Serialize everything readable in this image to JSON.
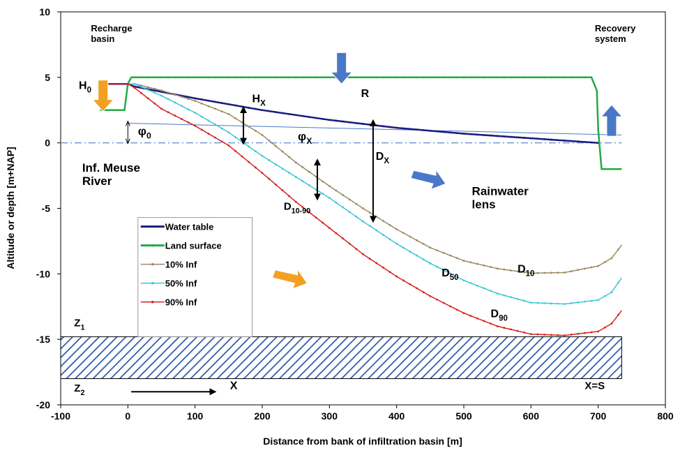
{
  "chart_data": {
    "type": "line",
    "xlabel": "Distance from bank of infiltration basin  [m]",
    "ylabel": "Altitude or depth  [m+NAP]",
    "xlim": [
      -100,
      800
    ],
    "ylim": [
      -20,
      10
    ],
    "x_ticks": [
      "-100",
      "0",
      "100",
      "200",
      "300",
      "400",
      "500",
      "600",
      "700",
      "800"
    ],
    "y_ticks": [
      "10",
      "5",
      "0",
      "-5",
      "-10",
      "-15",
      "-20"
    ],
    "grid": false,
    "legend_position": "left-middle",
    "series": [
      {
        "name": "Water table",
        "color": "#1a1a7e",
        "x": [
          -40,
          0,
          10,
          50,
          100,
          200,
          300,
          400,
          500,
          600,
          700
        ],
        "y": [
          4.5,
          4.5,
          4.3,
          3.9,
          3.4,
          2.5,
          1.75,
          1.15,
          0.7,
          0.35,
          0.0
        ]
      },
      {
        "name": "Land surface",
        "color": "#22aa44",
        "x": [
          -40,
          -5,
          0,
          5,
          150,
          300,
          500,
          690,
          698,
          700,
          705,
          735
        ],
        "y": [
          2.5,
          2.5,
          4.5,
          5.0,
          5.0,
          5.0,
          5.0,
          5.0,
          4.0,
          1.0,
          -2.0,
          -2.0
        ]
      },
      {
        "name": "10% Inf",
        "color": "#9a8c60",
        "x": [
          -40,
          0,
          10,
          50,
          100,
          150,
          200,
          250,
          300,
          350,
          400,
          450,
          500,
          550,
          600,
          650,
          700,
          720,
          735
        ],
        "y": [
          4.5,
          4.5,
          4.5,
          4.0,
          3.2,
          2.2,
          0.6,
          -1.5,
          -3.3,
          -5.0,
          -6.6,
          -8.0,
          -9.0,
          -9.6,
          -9.95,
          -9.9,
          -9.4,
          -8.8,
          -7.8
        ]
      },
      {
        "name": "50% Inf",
        "color": "#3cc8d4",
        "x": [
          -40,
          0,
          10,
          50,
          100,
          150,
          200,
          250,
          300,
          350,
          400,
          450,
          500,
          550,
          600,
          650,
          700,
          720,
          735
        ],
        "y": [
          4.5,
          4.5,
          4.5,
          3.6,
          2.3,
          0.8,
          -1.0,
          -2.6,
          -4.2,
          -6.0,
          -7.7,
          -9.2,
          -10.5,
          -11.5,
          -12.2,
          -12.3,
          -12.0,
          -11.4,
          -10.3
        ]
      },
      {
        "name": "90% Inf",
        "color": "#d62020",
        "x": [
          -40,
          0,
          10,
          50,
          100,
          150,
          200,
          250,
          300,
          350,
          400,
          450,
          500,
          550,
          600,
          650,
          700,
          720,
          735
        ],
        "y": [
          4.5,
          4.5,
          4.2,
          2.6,
          1.3,
          -0.2,
          -2.3,
          -4.5,
          -6.5,
          -8.5,
          -10.2,
          -11.7,
          -13.0,
          -14.0,
          -14.6,
          -14.7,
          -14.4,
          -13.8,
          -12.8
        ]
      }
    ],
    "reference_lines": [
      {
        "name": "phi-line",
        "color": "#4a78c8",
        "x": [
          0,
          735
        ],
        "y": [
          1.5,
          0.6
        ]
      }
    ],
    "annotations": {
      "recharge_basin": "Recharge\nbasin",
      "recovery_system": "Recovery\nsystem",
      "h0": "H0",
      "hx": "HX",
      "r": "R",
      "phi0": "φ0",
      "phix": "φX",
      "dx": "DX",
      "inf_meuse": "Inf. Meuse\nRiver",
      "rainwater": "Rainwater\nlens",
      "d1090": "D10-90",
      "d10": "D10",
      "d50": "D50",
      "d90": "D90",
      "z1": "Z1",
      "z2": "Z2",
      "x": "X",
      "xs": "X=S"
    },
    "annotation_positions": {
      "recharge_basin": [
        -55,
        8.5
      ],
      "recovery_system": [
        695,
        8.5
      ],
      "h0": [
        -73,
        4.1
      ],
      "hx": [
        185,
        3.1
      ],
      "r": [
        347,
        3.5
      ],
      "phi0": [
        15,
        0.6
      ],
      "phix": [
        253,
        0.2
      ],
      "dx": [
        369,
        -1.3
      ],
      "inf_meuse": [
        -68,
        -2.2
      ],
      "rainwater": [
        512,
        -4.0
      ],
      "d1090": [
        232,
        -5.1
      ],
      "d10": [
        580,
        -9.9
      ],
      "d50": [
        467,
        -10.2
      ],
      "d90": [
        540,
        -13.3
      ],
      "z1": [
        -80,
        -14.0
      ],
      "z2": [
        -80,
        -19.0
      ],
      "x": [
        152,
        -18.8
      ],
      "xs": [
        680,
        -18.8
      ]
    },
    "basement": {
      "x": [
        -100,
        735
      ],
      "y": [
        -14.8,
        -18.0
      ]
    },
    "vertical_arrows": [
      {
        "x": 172,
        "y": [
          2.7,
          -0.05
        ]
      },
      {
        "x": 282,
        "y": [
          -1.3,
          -4.3
        ]
      },
      {
        "x": 365,
        "y": [
          1.7,
          -6.0
        ]
      },
      {
        "x": 0,
        "y": [
          1.6,
          0.0
        ]
      }
    ],
    "horizontal_arrow": {
      "y": -19.0,
      "x": [
        5,
        130
      ]
    },
    "block_arrows": [
      {
        "kind": "down",
        "color": "#f2a020",
        "x": -37,
        "y": 3.3
      },
      {
        "kind": "down",
        "color": "#4a78c8",
        "x": 318,
        "y": 5.4
      },
      {
        "kind": "up",
        "color": "#4a78c8",
        "x": 720,
        "y": 2.0
      },
      {
        "kind": "diag",
        "color": "#4a78c8",
        "x": 446,
        "y": -2.8
      },
      {
        "kind": "diag",
        "color": "#f2a020",
        "x": 240,
        "y": -10.4
      }
    ],
    "legend_box": {
      "x": [
        15,
        185
      ],
      "y": [
        -5.7,
        -14.8
      ]
    }
  }
}
